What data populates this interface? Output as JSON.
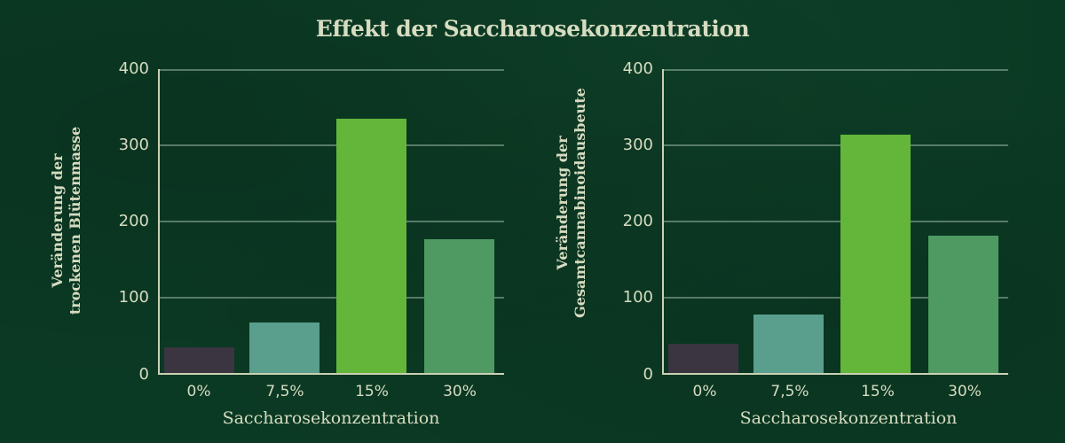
{
  "title": "Effekt der Saccharosekonzentration",
  "chart_data": [
    {
      "type": "bar",
      "title": "Effekt der Saccharosekonzentration",
      "xlabel": "Saccharosekonzentration",
      "ylabel": "Veränderung der trockenen Blütenmasse",
      "ylabel_lines": [
        "Veränderung der",
        "trockenen Blütenmasse"
      ],
      "categories": [
        "0%",
        "7,5%",
        "15%",
        "30%"
      ],
      "values": [
        35,
        67,
        335,
        177
      ],
      "colors": [
        "#3a3540",
        "#5a9e8e",
        "#63b63a",
        "#4f9a63"
      ],
      "yticks": [
        0,
        100,
        200,
        300,
        400
      ],
      "ylim": [
        0,
        400
      ],
      "grid": true,
      "legend": null
    },
    {
      "type": "bar",
      "title": "Effekt der Saccharosekonzentration",
      "xlabel": "Saccharosekonzentration",
      "ylabel": "Veränderung der Gesamtcannabinoidausbeute",
      "ylabel_lines": [
        "Veränderung der",
        "Gesamtcannabinoidausbeute"
      ],
      "categories": [
        "0%",
        "7,5%",
        "15%",
        "30%"
      ],
      "values": [
        40,
        78,
        314,
        181
      ],
      "colors": [
        "#3a3540",
        "#5a9e8e",
        "#63b63a",
        "#4f9a63"
      ],
      "yticks": [
        0,
        100,
        200,
        300,
        400
      ],
      "ylim": [
        0,
        400
      ],
      "grid": true,
      "legend": null
    }
  ]
}
